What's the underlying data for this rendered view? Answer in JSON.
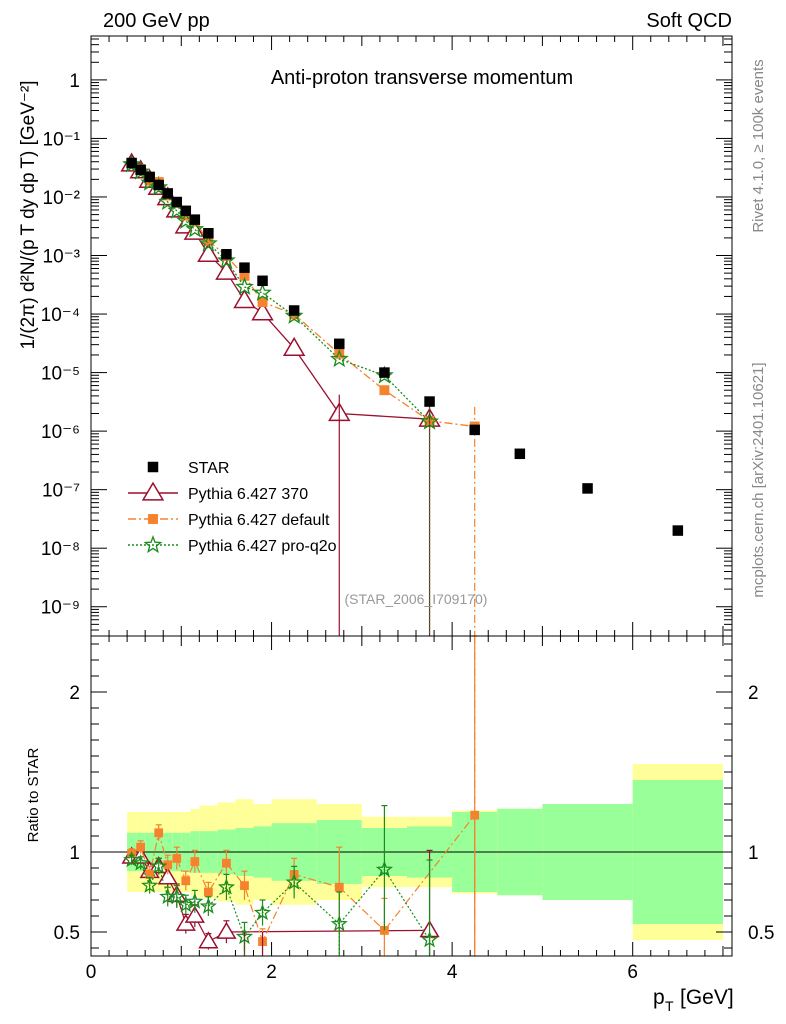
{
  "header": {
    "left": "200 GeV pp",
    "right": "Soft QCD",
    "side_text_1": "Rivet 4.1.0, ≥ 100k events",
    "side_text_2": "mcplots.cern.ch [arXiv:2401.10621]"
  },
  "chart_data": {
    "type": "scatter",
    "title": "Anti-proton transverse momentum",
    "watermark": "(STAR_2006_I709170)",
    "xlabel_main": "p",
    "xlabel_sub": "T",
    "xlabel_unit": "[GeV]",
    "ylabel_main": "1/(2π)  d²N/(p T dy dp T) [GeV⁻²]",
    "ylabel_ratio": "Ratio to STAR",
    "xlim": [
      0,
      7.1
    ],
    "ylim_main_log10": [
      -9.5,
      0.75
    ],
    "ylim_ratio": [
      0.35,
      2.35
    ],
    "x_ticks": [
      "0",
      "2",
      "4",
      "6"
    ],
    "y_ticks_main": [
      "10⁻⁹",
      "10⁻⁸",
      "10⁻⁷",
      "10⁻⁶",
      "10⁻⁵",
      "10⁻⁴",
      "10⁻³",
      "10⁻²",
      "10⁻¹",
      "1"
    ],
    "y_ticks_ratio": [
      "0.5",
      "1",
      "2"
    ],
    "legend": [
      "STAR",
      "Pythia 6.427 370",
      "Pythia 6.427 default",
      "Pythia 6.427 pro-q2o"
    ],
    "data_x": [
      0.45,
      0.55,
      0.65,
      0.75,
      0.85,
      0.95,
      1.05,
      1.15,
      1.3,
      1.5,
      1.7,
      1.9,
      2.25,
      2.75,
      3.25,
      3.75,
      4.25,
      4.75,
      5.5,
      6.5
    ],
    "data_x_lo": [
      0.4,
      0.5,
      0.6,
      0.7,
      0.8,
      0.9,
      1.0,
      1.1,
      1.2,
      1.4,
      1.6,
      1.8,
      2.0,
      2.5,
      3.0,
      3.5,
      4.0,
      4.5,
      5.0,
      6.0
    ],
    "data_x_hi": [
      0.5,
      0.6,
      0.7,
      0.8,
      0.9,
      1.0,
      1.1,
      1.2,
      1.4,
      1.6,
      1.8,
      2.0,
      2.5,
      3.0,
      3.5,
      4.0,
      4.5,
      5.0,
      6.0,
      7.0
    ],
    "star_values": [
      0.038,
      0.029,
      0.022,
      0.016,
      0.0115,
      0.0082,
      0.0058,
      0.0041,
      0.0024,
      0.00105,
      0.00062,
      0.00037,
      0.000115,
      3.1e-05,
      1e-05,
      3.2e-06,
      1.05e-06,
      4.1e-07,
      1.05e-07,
      2e-08
    ],
    "band_yellow_halfwidth": [
      0.25,
      0.25,
      0.25,
      0.25,
      0.25,
      0.25,
      0.25,
      0.27,
      0.29,
      0.31,
      0.33,
      0.3,
      0.33,
      0.3,
      0.22,
      0.22,
      0.26,
      0.27,
      0.3,
      0.55
    ],
    "band_green_halfwidth": [
      0.12,
      0.12,
      0.12,
      0.12,
      0.12,
      0.12,
      0.12,
      0.13,
      0.13,
      0.14,
      0.15,
      0.16,
      0.18,
      0.2,
      0.15,
      0.16,
      0.25,
      0.27,
      0.3,
      0.45
    ],
    "series": [
      {
        "name": "Pythia 6.427 370",
        "color": "#9b0f2f",
        "marker": "open-triangle",
        "line": "solid",
        "values": [
          0.0367,
          0.028,
          0.0193,
          0.0146,
          0.0097,
          0.006,
          0.0032,
          0.0025,
          0.00105,
          0.00052,
          0.00017,
          0.000105,
          2.6e-05,
          2e-06,
          null,
          1.6e-06,
          null,
          null,
          null,
          null
        ],
        "ratio": [
          0.97,
          0.97,
          0.88,
          0.91,
          0.84,
          0.73,
          0.55,
          0.6,
          0.44,
          0.5,
          null,
          null,
          null,
          null,
          null,
          0.51,
          null,
          null,
          null,
          null
        ],
        "ratio_err": [
          0.03,
          0.04,
          0.05,
          0.05,
          0.06,
          0.07,
          0.06,
          0.07,
          0.05,
          0.07,
          null,
          null,
          null,
          null,
          null,
          0.5,
          null,
          null,
          null,
          null
        ]
      },
      {
        "name": "Pythia 6.427 default",
        "color": "#f5822d",
        "marker": "filled-square",
        "line": "dashdot",
        "values": [
          0.0375,
          0.03,
          0.019,
          0.018,
          0.0106,
          0.0079,
          0.0048,
          0.0038,
          0.0018,
          0.00098,
          0.00045,
          0.00016,
          9.9e-05,
          2.1e-05,
          5e-06,
          1.5e-06,
          1.2e-06,
          null,
          null,
          null
        ],
        "ratio": [
          0.99,
          1.03,
          0.86,
          1.12,
          0.92,
          0.96,
          0.82,
          0.94,
          0.75,
          0.93,
          0.79,
          0.44,
          0.86,
          0.78,
          0.51,
          null,
          1.23,
          null,
          null,
          null
        ],
        "ratio_err": [
          0.03,
          0.04,
          0.05,
          0.05,
          0.06,
          0.07,
          0.06,
          0.07,
          0.06,
          0.08,
          0.09,
          0.08,
          0.1,
          0.25,
          0.2,
          null,
          1.2,
          null,
          null,
          null
        ]
      },
      {
        "name": "Pythia 6.427 pro-q2o",
        "color": "#1a8c1a",
        "marker": "open-star",
        "line": "dotted",
        "values": [
          0.036,
          0.027,
          0.0175,
          0.0145,
          0.0082,
          0.0058,
          0.0039,
          0.0028,
          0.0016,
          0.00082,
          0.00029,
          0.00023,
          9.3e-05,
          1.7e-05,
          8.9e-06,
          1.45e-06,
          null,
          null,
          null,
          null
        ],
        "ratio": [
          0.95,
          0.93,
          0.79,
          0.91,
          0.72,
          0.72,
          0.67,
          0.69,
          0.66,
          0.78,
          0.47,
          0.62,
          0.81,
          0.55,
          0.89,
          0.45,
          null,
          null,
          null,
          null
        ],
        "ratio_err": [
          0.03,
          0.04,
          0.05,
          0.05,
          0.06,
          0.07,
          0.06,
          0.07,
          0.06,
          0.08,
          0.09,
          0.08,
          0.1,
          0.2,
          0.4,
          0.5,
          null,
          null,
          null,
          null
        ]
      }
    ]
  }
}
